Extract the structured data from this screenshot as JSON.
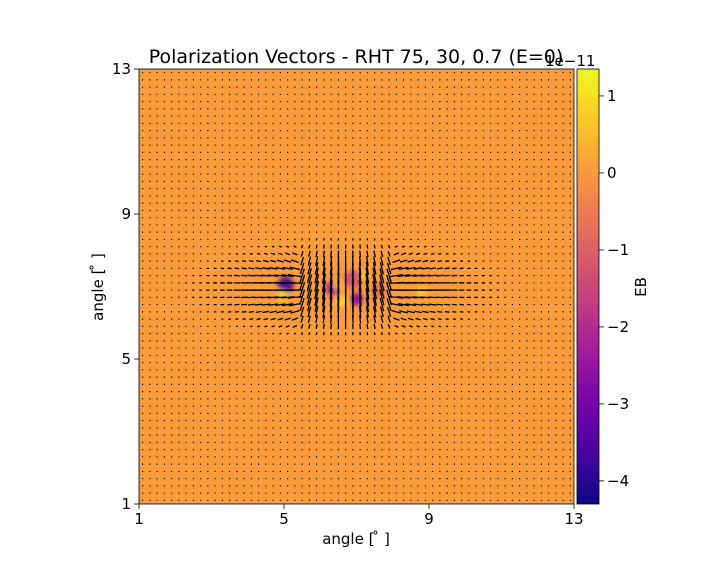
{
  "chart_data": {
    "type": "heatmap",
    "title": "Polarization Vectors - RHT 75, 30, 0.7 (E=0)",
    "xlabel": "angle [$^\\circ$]",
    "ylabel": "angle [$^\\circ$]",
    "xlabel_display": "angle [ ̊ ]",
    "ylabel_display": "angle [ ̊ ]",
    "xlim": [
      1,
      13
    ],
    "ylim": [
      1,
      13
    ],
    "xticks": [
      "1",
      "5",
      "9",
      "13"
    ],
    "yticks": [
      "1",
      "5",
      "9",
      "13"
    ],
    "colorbar": {
      "label": "EB",
      "offset_text": "1e−11",
      "range": [
        -4.3,
        1.35
      ],
      "ticks": [
        "1",
        "0",
        "−1",
        "−2",
        "−3",
        "−4"
      ],
      "tick_values": [
        1,
        0,
        -1,
        -2,
        -3,
        -4
      ],
      "colormap": "plasma",
      "stops": [
        "#0d0887",
        "#46039f",
        "#7201a8",
        "#9c179e",
        "#bd3786",
        "#d8576b",
        "#ed7953",
        "#fb9f3a",
        "#fdca26",
        "#f0f921"
      ]
    },
    "background_value": 0.05,
    "features": [
      {
        "x": 5.05,
        "y": 7.05,
        "value": -3.6,
        "radius": 0.22
      },
      {
        "x": 6.35,
        "y": 6.95,
        "value": -2.3,
        "radius": 0.2
      },
      {
        "x": 7.0,
        "y": 6.65,
        "value": -2.6,
        "radius": 0.18
      },
      {
        "x": 6.9,
        "y": 7.2,
        "value": -1.3,
        "radius": 0.25
      },
      {
        "x": 7.6,
        "y": 6.9,
        "value": -0.8,
        "radius": 0.2
      },
      {
        "x": 4.95,
        "y": 6.75,
        "value": 0.8,
        "radius": 0.15
      },
      {
        "x": 6.6,
        "y": 6.6,
        "value": 0.9,
        "radius": 0.15
      },
      {
        "x": 7.2,
        "y": 7.3,
        "value": 0.8,
        "radius": 0.12
      },
      {
        "x": 8.8,
        "y": 6.85,
        "value": 0.7,
        "radius": 0.15
      },
      {
        "x": 6.5,
        "y": 7.05,
        "value": 0.5,
        "radius": 0.15
      }
    ],
    "vector_field": {
      "grid_spacing_deg": 0.2,
      "center": [
        6.7,
        6.95
      ],
      "sigma_x_deg": 2.0,
      "sigma_y_deg": 0.65,
      "max_length_deg": 0.55
    }
  }
}
